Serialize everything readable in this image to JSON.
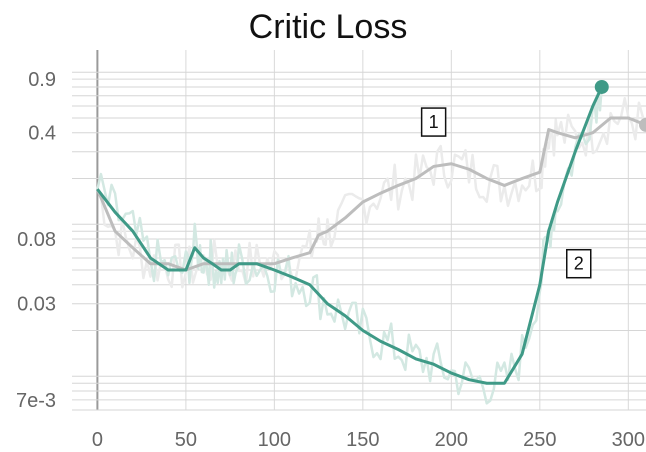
{
  "chart_data": {
    "type": "line",
    "title": "Critic Loss",
    "xlabel": "",
    "ylabel": "",
    "xlim": [
      -20,
      310
    ],
    "ylim": [
      0.006,
      1.4
    ],
    "y_scale": "log",
    "grid": true,
    "x_ticks": [
      0,
      50,
      100,
      150,
      200,
      250,
      300
    ],
    "x_tick_labels": [
      "0",
      "50",
      "100",
      "150",
      "200",
      "250",
      "300"
    ],
    "y_ticks": [
      0.007,
      0.03,
      0.08,
      0.4,
      0.9
    ],
    "y_tick_labels": [
      "7e-3",
      "0.03",
      "0.08",
      "0.4",
      "0.9"
    ],
    "series": [
      {
        "color": "#bdbdbd",
        "raw_color": "#ebebeb",
        "x": [
          0,
          10,
          20,
          30,
          40,
          50,
          60,
          70,
          80,
          90,
          100,
          110,
          120,
          125,
          130,
          140,
          150,
          160,
          170,
          180,
          190,
          200,
          210,
          220,
          230,
          240,
          250,
          255,
          260,
          270,
          280,
          290,
          300,
          310
        ],
        "y": [
          0.17,
          0.09,
          0.07,
          0.055,
          0.055,
          0.05,
          0.055,
          0.055,
          0.055,
          0.055,
          0.055,
          0.06,
          0.065,
          0.085,
          0.09,
          0.11,
          0.14,
          0.16,
          0.18,
          0.2,
          0.24,
          0.25,
          0.23,
          0.2,
          0.18,
          0.2,
          0.22,
          0.42,
          0.4,
          0.37,
          0.4,
          0.5,
          0.5,
          0.45
        ]
      },
      {
        "color": "#3f9a87",
        "raw_color": "#d3e8e2",
        "x": [
          0,
          10,
          20,
          30,
          40,
          50,
          55,
          60,
          65,
          70,
          75,
          80,
          90,
          100,
          110,
          120,
          130,
          140,
          150,
          160,
          170,
          180,
          190,
          200,
          210,
          220,
          230,
          240,
          250,
          255,
          260,
          270,
          280,
          285
        ],
        "y": [
          0.17,
          0.12,
          0.09,
          0.06,
          0.05,
          0.05,
          0.07,
          0.06,
          0.055,
          0.05,
          0.05,
          0.055,
          0.055,
          0.05,
          0.045,
          0.04,
          0.03,
          0.025,
          0.02,
          0.017,
          0.015,
          0.013,
          0.012,
          0.0105,
          0.0095,
          0.009,
          0.009,
          0.014,
          0.04,
          0.09,
          0.14,
          0.3,
          0.6,
          0.8
        ]
      }
    ],
    "annotations": [
      {
        "text": "1",
        "x": 190,
        "y": 0.47
      },
      {
        "text": "2",
        "x": 272,
        "y": 0.055
      }
    ]
  }
}
